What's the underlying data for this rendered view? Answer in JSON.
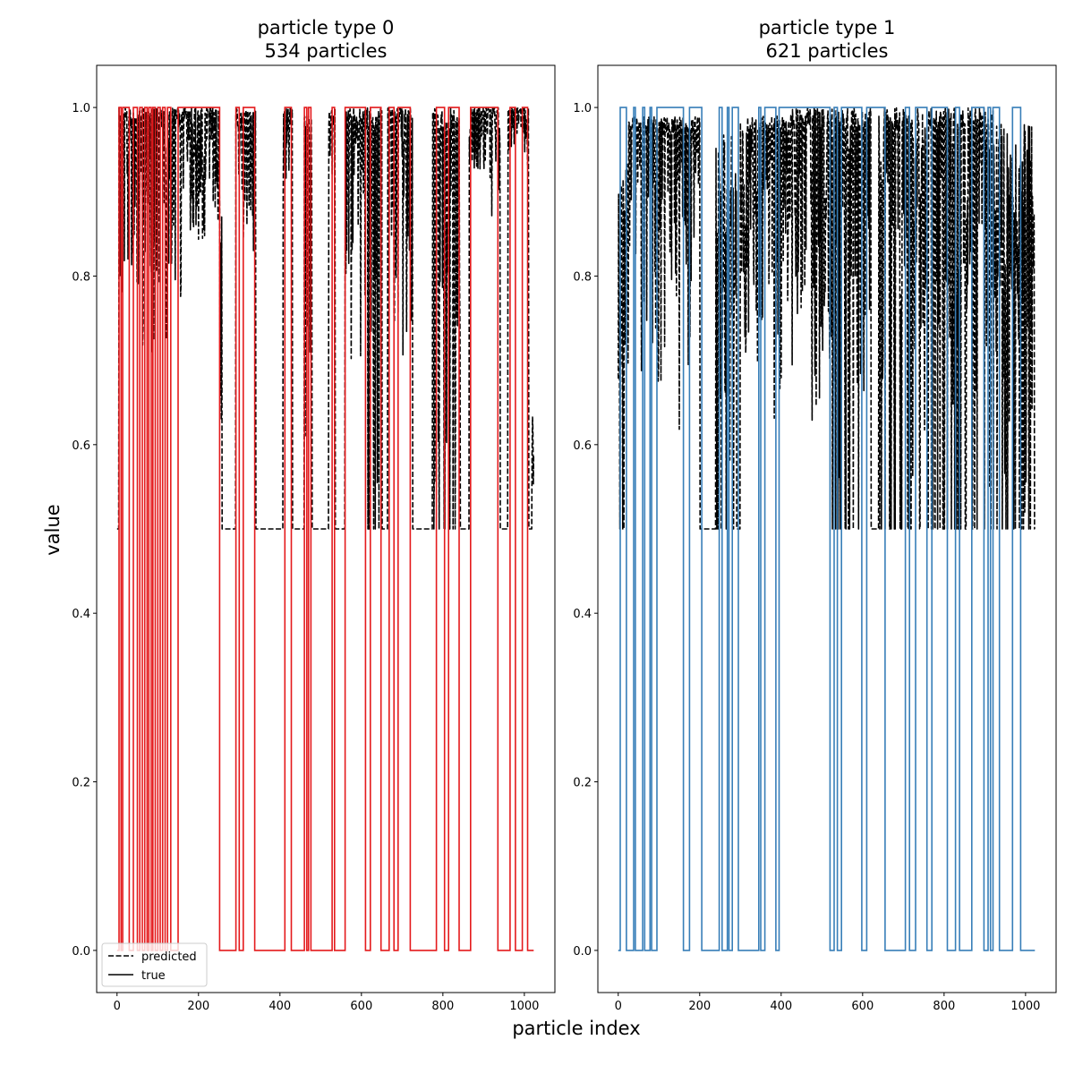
{
  "figure": {
    "xlabel": "particle index",
    "ylabel": "value"
  },
  "legend": {
    "placement": "lower-left",
    "entries": [
      {
        "label": "predicted",
        "style": "dashed",
        "color": "#000000"
      },
      {
        "label": "true",
        "style": "solid",
        "color": "#000000"
      }
    ]
  },
  "chart_data": [
    {
      "type": "line",
      "title_line1": "particle type 0",
      "title_line2": "534 particles",
      "xlim": [
        -50,
        1075
      ],
      "ylim": [
        -0.05,
        1.05
      ],
      "xticks": [
        0,
        200,
        400,
        600,
        800,
        1000
      ],
      "yticks": [
        0.0,
        0.2,
        0.4,
        0.6,
        0.8,
        1.0
      ],
      "ytick_labels": [
        "0.0",
        "0.2",
        "0.4",
        "0.6",
        "0.8",
        "1.0"
      ],
      "true_color": "#e41a1c",
      "series": [
        {
          "name": "true",
          "style": "step",
          "intervals_at_1": [
            [
              5,
              10
            ],
            [
              14,
              30
            ],
            [
              40,
              50
            ],
            [
              56,
              62
            ],
            [
              68,
              74
            ],
            [
              78,
              84
            ],
            [
              88,
              94
            ],
            [
              100,
              106
            ],
            [
              112,
              118
            ],
            [
              124,
              132
            ],
            [
              150,
              252
            ],
            [
              292,
              300
            ],
            [
              310,
              338
            ],
            [
              412,
              428
            ],
            [
              460,
              466
            ],
            [
              470,
              476
            ],
            [
              528,
              534
            ],
            [
              560,
              610
            ],
            [
              622,
              648
            ],
            [
              668,
              680
            ],
            [
              690,
              720
            ],
            [
              784,
              804
            ],
            [
              814,
              840
            ],
            [
              868,
              935
            ],
            [
              965,
              978
            ],
            [
              995,
              1008
            ]
          ],
          "x_start": 0,
          "x_end": 1023
        },
        {
          "name": "predicted",
          "style": "dashed",
          "baseline": 0.5,
          "segments": [
            {
              "x0": 5,
              "x1": 160,
              "min": 0.7,
              "max": 1.0
            },
            {
              "x0": 150,
              "x1": 252,
              "min": 0.82,
              "max": 1.0
            },
            {
              "x0": 252,
              "x1": 258,
              "min": 0.5,
              "max": 0.88
            },
            {
              "x0": 292,
              "x1": 340,
              "min": 0.8,
              "max": 1.0
            },
            {
              "x0": 408,
              "x1": 430,
              "min": 0.8,
              "max": 1.0
            },
            {
              "x0": 460,
              "x1": 478,
              "min": 0.55,
              "max": 1.0
            },
            {
              "x0": 520,
              "x1": 535,
              "min": 0.6,
              "max": 1.0
            },
            {
              "x0": 560,
              "x1": 612,
              "min": 0.65,
              "max": 1.0
            },
            {
              "x0": 612,
              "x1": 650,
              "min": 0.5,
              "max": 1.0
            },
            {
              "x0": 665,
              "x1": 725,
              "min": 0.66,
              "max": 1.0
            },
            {
              "x0": 775,
              "x1": 842,
              "min": 0.5,
              "max": 1.0
            },
            {
              "x0": 865,
              "x1": 940,
              "min": 0.86,
              "max": 1.0
            },
            {
              "x0": 960,
              "x1": 1010,
              "min": 0.93,
              "max": 1.0
            },
            {
              "x0": 1018,
              "x1": 1023,
              "min": 0.5,
              "max": 0.65
            }
          ]
        }
      ]
    },
    {
      "type": "line",
      "title_line1": "particle type 1",
      "title_line2": "621 particles",
      "xlim": [
        -50,
        1075
      ],
      "ylim": [
        -0.05,
        1.05
      ],
      "xticks": [
        0,
        200,
        400,
        600,
        800,
        1000
      ],
      "yticks": [
        0.0,
        0.2,
        0.4,
        0.6,
        0.8,
        1.0
      ],
      "ytick_labels": [
        "0.0",
        "0.2",
        "0.4",
        "0.6",
        "0.8",
        "1.0"
      ],
      "true_color": "#377eb8",
      "series": [
        {
          "name": "true",
          "style": "step",
          "intervals_at_1": [
            [
              5,
              20
            ],
            [
              38,
              42
            ],
            [
              60,
              65
            ],
            [
              78,
              82
            ],
            [
              95,
              160
            ],
            [
              175,
              205
            ],
            [
              248,
              255
            ],
            [
              268,
              272
            ],
            [
              280,
              295
            ],
            [
              345,
              350
            ],
            [
              360,
              387
            ],
            [
              395,
              520
            ],
            [
              530,
              538
            ],
            [
              548,
              598
            ],
            [
              610,
              655
            ],
            [
              705,
              715
            ],
            [
              730,
              758
            ],
            [
              770,
              808
            ],
            [
              828,
              838
            ],
            [
              868,
              898
            ],
            [
              908,
              914
            ],
            [
              920,
              936
            ],
            [
              968,
              988
            ]
          ],
          "x_start": 0,
          "x_end": 1023
        },
        {
          "name": "predicted",
          "style": "dashed",
          "baseline": 0.5,
          "segments": [
            {
              "x0": 0,
              "x1": 20,
              "min": 0.5,
              "max": 0.95
            },
            {
              "x0": 20,
              "x1": 200,
              "min": 0.58,
              "max": 0.99
            },
            {
              "x0": 240,
              "x1": 290,
              "min": 0.5,
              "max": 0.97
            },
            {
              "x0": 300,
              "x1": 420,
              "min": 0.58,
              "max": 0.99
            },
            {
              "x0": 420,
              "x1": 520,
              "min": 0.56,
              "max": 1.0
            },
            {
              "x0": 520,
              "x1": 620,
              "min": 0.5,
              "max": 1.0
            },
            {
              "x0": 640,
              "x1": 780,
              "min": 0.5,
              "max": 1.0
            },
            {
              "x0": 780,
              "x1": 920,
              "min": 0.5,
              "max": 1.0
            },
            {
              "x0": 920,
              "x1": 1020,
              "min": 0.5,
              "max": 0.98
            },
            {
              "x0": 1018,
              "x1": 1023,
              "min": 0.5,
              "max": 0.96
            }
          ]
        }
      ]
    }
  ]
}
